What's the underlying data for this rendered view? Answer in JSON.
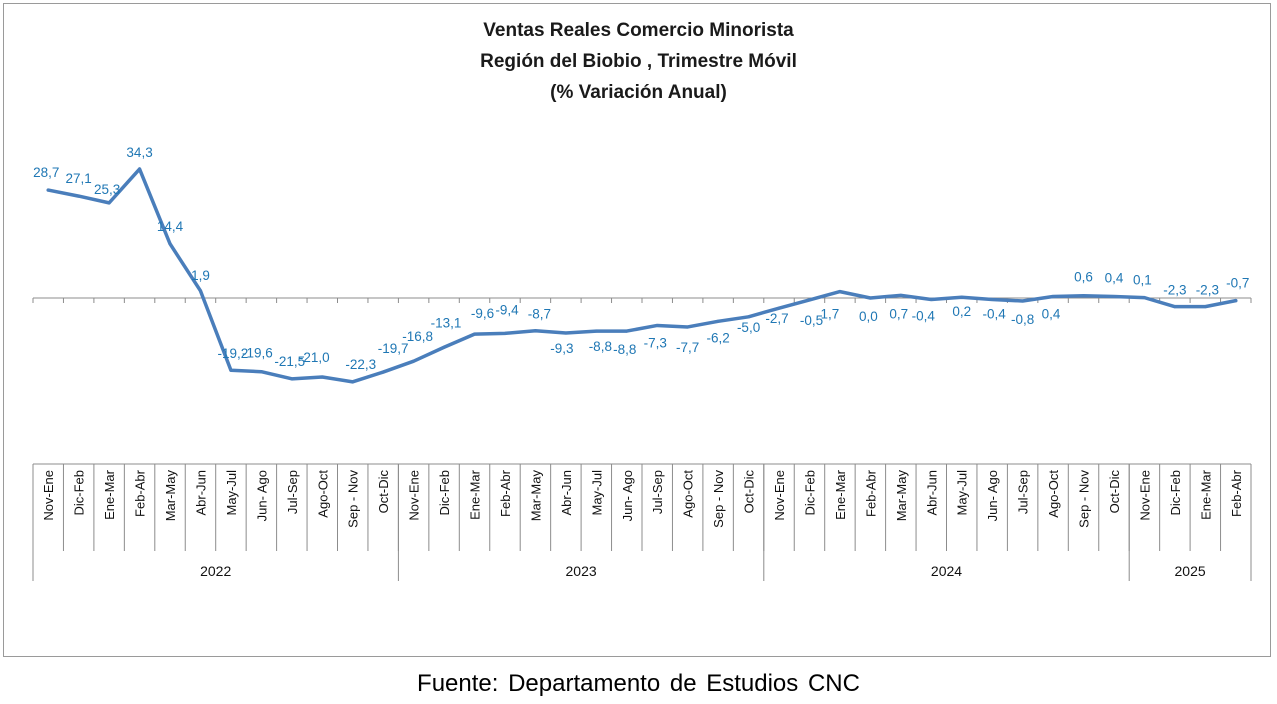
{
  "chart_data": {
    "type": "line",
    "title": [
      "Ventas Reales Comercio Minorista",
      "Región del Biobio , Trimestre Móvil",
      "(% Variación Anual)"
    ],
    "categories": [
      "Nov-Ene",
      "Dic-Feb",
      "Ene-Mar",
      "Feb-Abr",
      "Mar-May",
      "Abr-Jun",
      "May-Jul",
      "Jun- Ago",
      "Jul-Sep",
      "Ago-Oct",
      "Sep - Nov",
      "Oct-Dic",
      "Nov-Ene",
      "Dic-Feb",
      "Ene-Mar",
      "Feb-Abr",
      "Mar-May",
      "Abr-Jun",
      "May-Jul",
      "Jun- Ago",
      "Jul-Sep",
      "Ago-Oct",
      "Sep - Nov",
      "Oct-Dic",
      "Nov-Ene",
      "Dic-Feb",
      "Ene-Mar",
      "Feb-Abr",
      "Mar-May",
      "Abr-Jun",
      "May-Jul",
      "Jun- Ago",
      "Jul-Sep",
      "Ago-Oct",
      "Sep - Nov",
      "Oct-Dic",
      "Nov-Ene",
      "Dic-Feb",
      "Ene-Mar",
      "Feb-Abr"
    ],
    "year_groups": [
      {
        "label": "2022",
        "count": 12
      },
      {
        "label": "2023",
        "count": 12
      },
      {
        "label": "2024",
        "count": 12
      },
      {
        "label": "2025",
        "count": 4
      }
    ],
    "series": [
      {
        "values": [
          28.7,
          27.1,
          25.3,
          34.3,
          14.4,
          1.9,
          -19.2,
          -19.6,
          -21.5,
          -21.0,
          -22.3,
          -19.7,
          -16.8,
          -13.1,
          -9.6,
          -9.4,
          -8.7,
          -9.3,
          -8.8,
          -8.8,
          -7.3,
          -7.7,
          -6.2,
          -5.0,
          -2.7,
          -0.5,
          1.7,
          0.0,
          0.7,
          -0.4,
          0.2,
          -0.4,
          -0.8,
          0.4,
          0.6,
          0.4,
          0.1,
          -2.3,
          -2.3,
          -0.7
        ],
        "labels": [
          "28,7",
          "27,1",
          "25,3",
          "34,3",
          "14,4",
          "1,9",
          "-19,2",
          "-19,6",
          "-21,5",
          "-21,0",
          "-22,3",
          "-19,7",
          "-16,8",
          "-13,1",
          "-9,6",
          "-9,4",
          "-8,7",
          "-9,3",
          "-8,8",
          "-8,8",
          "-7,3",
          "-7,7",
          "-6,2",
          "-5,0",
          "-2,7",
          "-0,5",
          "1,7",
          "0,0",
          "0,7",
          "-0,4",
          "0,2",
          "-0,4",
          "-0,8",
          "0,4",
          "0,6",
          "0,4",
          "0,1",
          "-2,3",
          "-2,3",
          "-0,7"
        ],
        "color": "#4a7ebb"
      }
    ],
    "label_color": "#1f77b4",
    "ylim": [
      -40,
      45
    ],
    "grid": false
  },
  "source_note": "Fuente:  Departamento  de Estudios  CNC"
}
